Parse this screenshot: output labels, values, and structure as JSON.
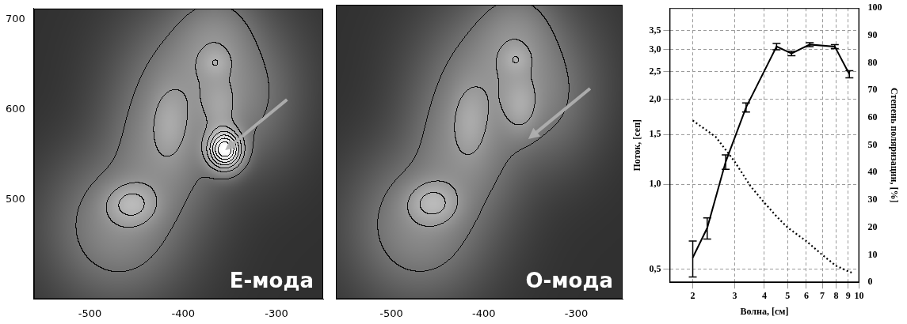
{
  "chart_data": [
    {
      "type": "image",
      "label": "Е-мода",
      "xlim": [
        -560,
        -250
      ],
      "ylim": [
        390,
        712
      ],
      "xticks": [
        -500,
        -400,
        -300
      ],
      "yticks": [
        500,
        600,
        700
      ],
      "value_range": [
        0,
        1.2
      ],
      "contour_levels": [
        0.12,
        0.3,
        0.45,
        0.6,
        0.75,
        0.9,
        1.05
      ],
      "arrow": [
        -355,
        555
      ],
      "sources": [
        {
          "x": -470,
          "y": 470,
          "sx": 40,
          "sy": 45,
          "amp": 0.22
        },
        {
          "x": -455,
          "y": 495,
          "sx": 18,
          "sy": 15,
          "amp": 0.3
        },
        {
          "x": -420,
          "y": 560,
          "sx": 35,
          "sy": 50,
          "amp": 0.22
        },
        {
          "x": -415,
          "y": 585,
          "sx": 12,
          "sy": 25,
          "amp": 0.15
        },
        {
          "x": -375,
          "y": 640,
          "sx": 45,
          "sy": 45,
          "amp": 0.22
        },
        {
          "x": -365,
          "y": 652,
          "sx": 10,
          "sy": 10,
          "amp": 0.15
        },
        {
          "x": -365,
          "y": 685,
          "sx": 25,
          "sy": 30,
          "amp": 0.12
        },
        {
          "x": -360,
          "y": 600,
          "sx": 12,
          "sy": 20,
          "amp": 0.15
        },
        {
          "x": -330,
          "y": 600,
          "sx": 30,
          "sy": 40,
          "amp": 0.08
        },
        {
          "x": -355,
          "y": 555,
          "sx": 12,
          "sy": 14,
          "amp": 1.1
        }
      ]
    },
    {
      "type": "image",
      "label": "О-мода",
      "tick_labels": "x",
      "xlim": [
        -560,
        -250
      ],
      "ylim": [
        390,
        712
      ],
      "xticks": [
        -500,
        -400,
        -300
      ],
      "yticks": [
        500,
        600,
        700
      ],
      "value_range": [
        0,
        1.2
      ],
      "contour_levels": [
        0.12,
        0.3,
        0.45,
        0.6,
        0.75,
        0.9,
        1.05
      ],
      "arrow": [
        -352,
        565
      ],
      "sources": [
        {
          "x": -470,
          "y": 470,
          "sx": 40,
          "sy": 45,
          "amp": 0.22
        },
        {
          "x": -455,
          "y": 495,
          "sx": 18,
          "sy": 15,
          "amp": 0.3
        },
        {
          "x": -420,
          "y": 560,
          "sx": 35,
          "sy": 50,
          "amp": 0.22
        },
        {
          "x": -415,
          "y": 585,
          "sx": 12,
          "sy": 25,
          "amp": 0.15
        },
        {
          "x": -375,
          "y": 640,
          "sx": 45,
          "sy": 45,
          "amp": 0.22
        },
        {
          "x": -365,
          "y": 652,
          "sx": 10,
          "sy": 10,
          "amp": 0.15
        },
        {
          "x": -365,
          "y": 685,
          "sx": 25,
          "sy": 30,
          "amp": 0.12
        },
        {
          "x": -360,
          "y": 600,
          "sx": 12,
          "sy": 20,
          "amp": 0.2
        },
        {
          "x": -330,
          "y": 600,
          "sx": 30,
          "sy": 40,
          "amp": 0.08
        }
      ]
    },
    {
      "type": "line",
      "log": true,
      "grid": true,
      "xlabel": "Волна, [см]",
      "ylabel": "Поток, [сеп]",
      "y2label": "Степень поляризации, [%]",
      "xlim": [
        1.6,
        10
      ],
      "xticks": [
        2,
        3,
        4,
        5,
        6,
        7,
        8,
        9,
        10
      ],
      "ylim": [
        0.45,
        4.2
      ],
      "yticks": [
        {
          "value": 0.5,
          "label": "0,5"
        },
        {
          "value": 1.0,
          "label": "1,0"
        },
        {
          "value": 1.5,
          "label": "1,5"
        },
        {
          "value": 2.0,
          "label": "2,0"
        },
        {
          "value": 2.5,
          "label": "2,5"
        },
        {
          "value": 3.0,
          "label": "3,0"
        },
        {
          "value": 3.5,
          "label": "3,5"
        }
      ],
      "y2lim": [
        0,
        100
      ],
      "y2ticks": [
        0,
        10,
        20,
        30,
        40,
        50,
        60,
        70,
        80,
        90,
        100
      ],
      "series": [
        {
          "color": "#000000",
          "line_style": "solid",
          "marker": "none",
          "x": [
            2.0,
            2.3,
            2.75,
            3.35,
            4.5,
            5.2,
            6.2,
            7.9,
            9.1
          ],
          "values": [
            0.55,
            0.7,
            1.2,
            1.87,
            3.07,
            2.9,
            3.12,
            3.07,
            2.45
          ],
          "errors": [
            0.08,
            0.06,
            0.07,
            0.07,
            0.08,
            0.05,
            0.05,
            0.05,
            0.07
          ]
        },
        {
          "color": "#000000",
          "line_style": "dotted",
          "marker": "none",
          "axis": "y2",
          "x": [
            2.0,
            2.5,
            3.0,
            3.5,
            4.0,
            4.5,
            5.0,
            6.0,
            7.0,
            8.0,
            9.0,
            9.3
          ],
          "values": [
            59,
            53,
            44,
            35,
            29,
            24,
            20,
            15,
            10,
            6,
            4,
            3.5
          ]
        }
      ]
    }
  ]
}
